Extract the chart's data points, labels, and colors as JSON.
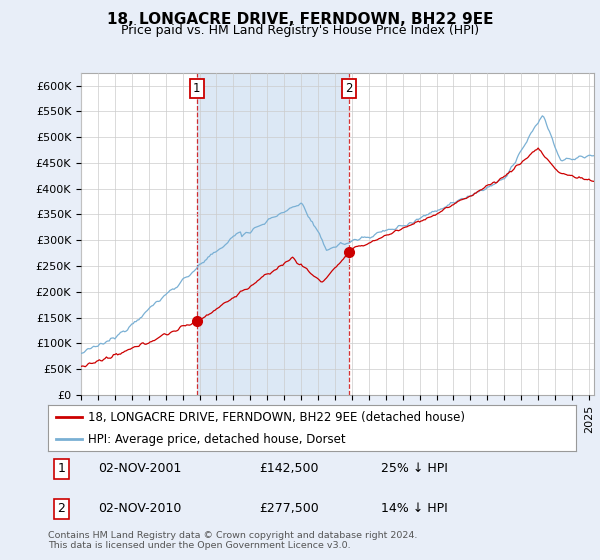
{
  "title": "18, LONGACRE DRIVE, FERNDOWN, BH22 9EE",
  "subtitle": "Price paid vs. HM Land Registry's House Price Index (HPI)",
  "ylabel_ticks": [
    "£0",
    "£50K",
    "£100K",
    "£150K",
    "£200K",
    "£250K",
    "£300K",
    "£350K",
    "£400K",
    "£450K",
    "£500K",
    "£550K",
    "£600K"
  ],
  "ytick_vals": [
    0,
    50000,
    100000,
    150000,
    200000,
    250000,
    300000,
    350000,
    400000,
    450000,
    500000,
    550000,
    600000
  ],
  "ylim": [
    0,
    620000
  ],
  "xlim_start": 1995.0,
  "xlim_end": 2025.3,
  "background_color": "#e8eef8",
  "plot_background": "#ffffff",
  "shade_color": "#dce8f5",
  "red_line_color": "#cc0000",
  "blue_line_color": "#7ab0d4",
  "purchase1_x": 2001.84,
  "purchase1_y": 142500,
  "purchase2_x": 2010.84,
  "purchase2_y": 277500,
  "legend_line1": "18, LONGACRE DRIVE, FERNDOWN, BH22 9EE (detached house)",
  "legend_line2": "HPI: Average price, detached house, Dorset",
  "footer": "Contains HM Land Registry data © Crown copyright and database right 2024.\nThis data is licensed under the Open Government Licence v3.0.",
  "title_fontsize": 11,
  "subtitle_fontsize": 9,
  "tick_fontsize": 8,
  "ann_fontsize": 9
}
